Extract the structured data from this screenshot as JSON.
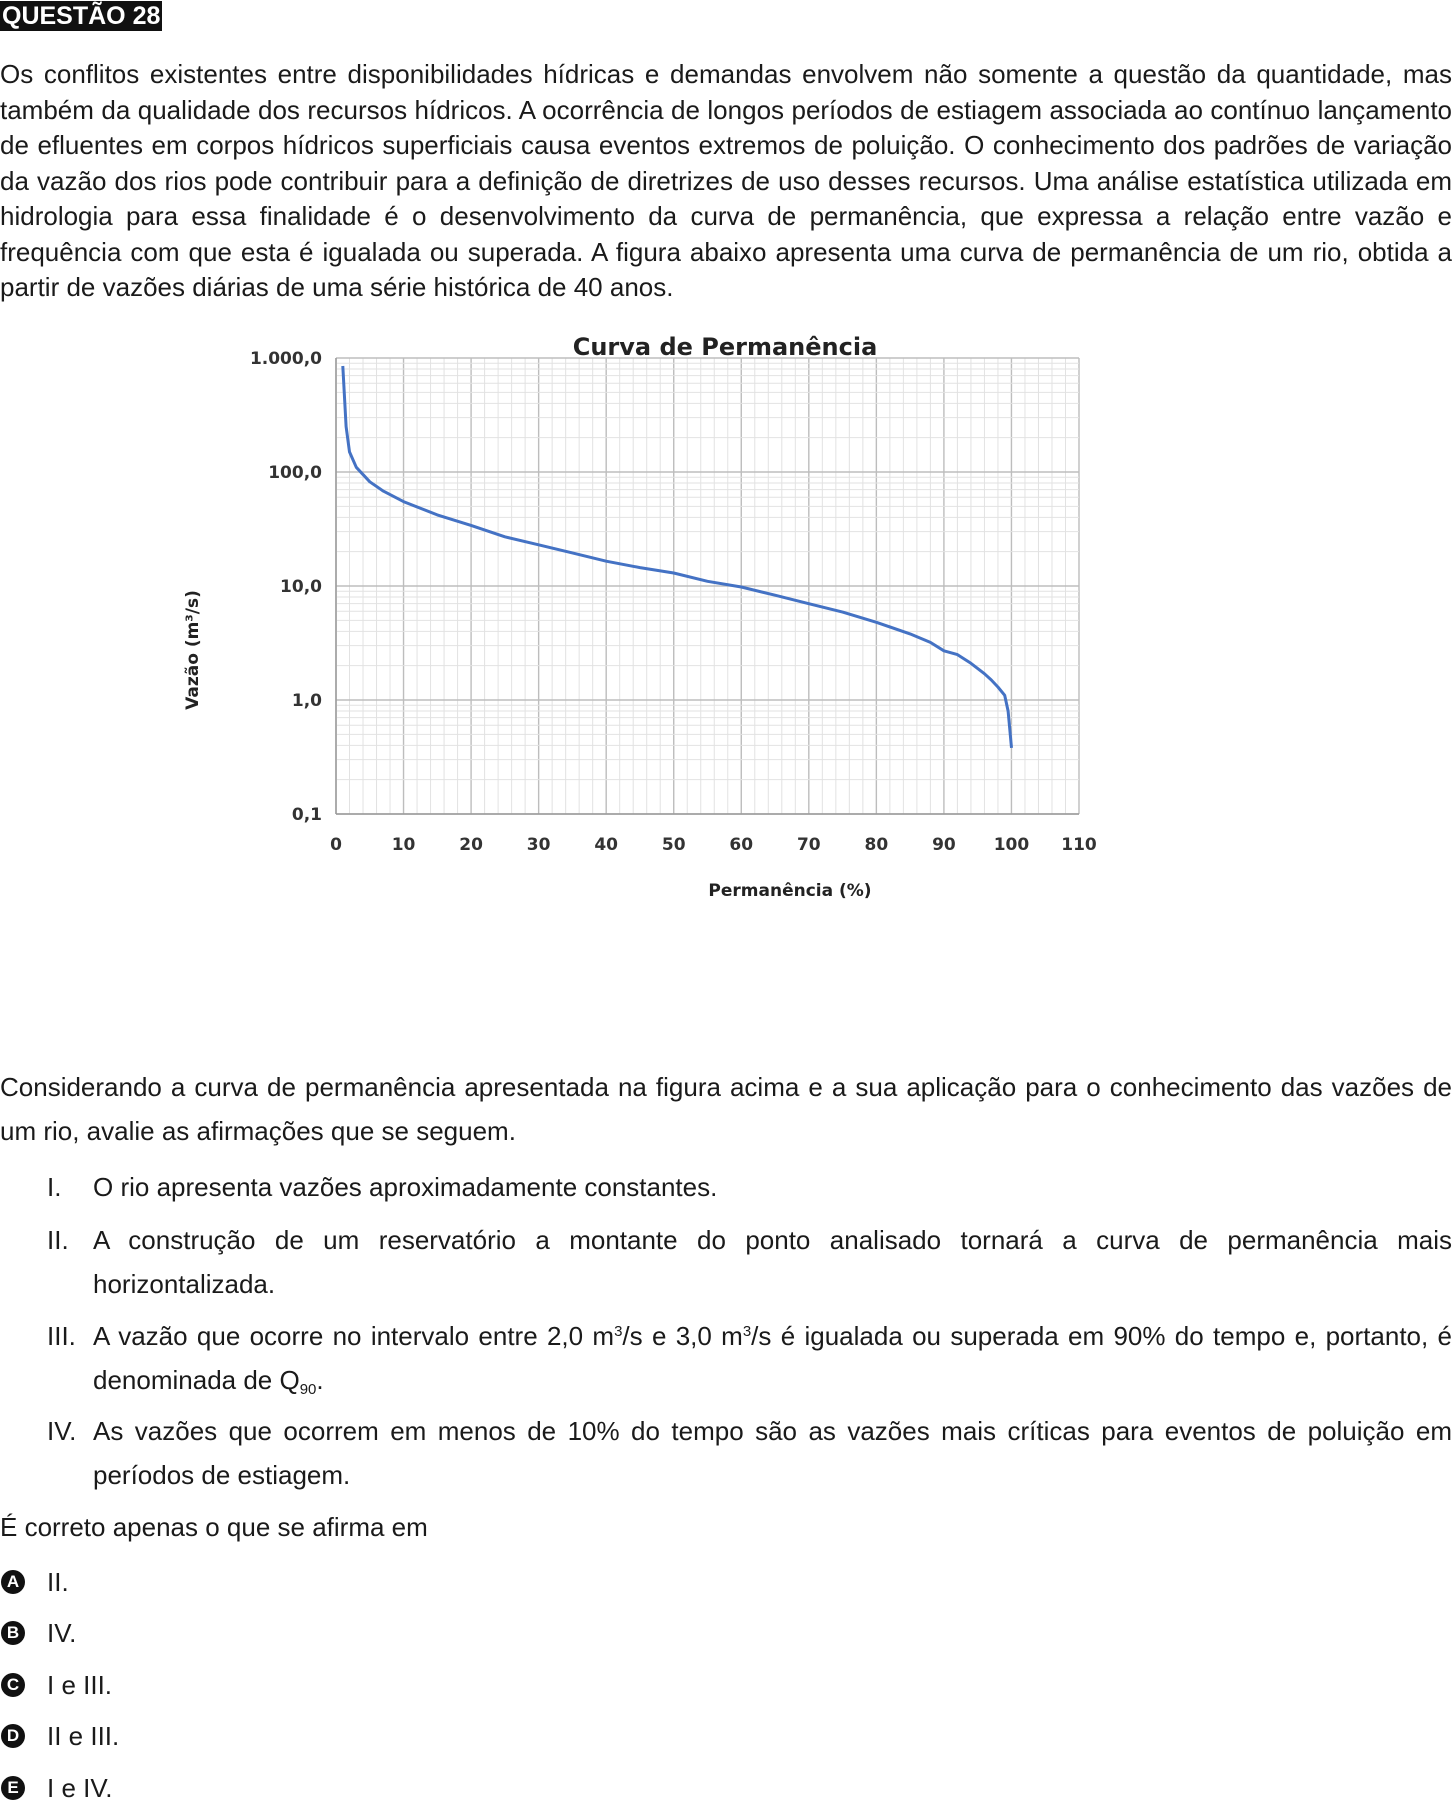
{
  "header": {
    "question_label": "QUESTÃO 28"
  },
  "intro": "Os conflitos existentes entre disponibilidades hídricas e demandas envolvem não somente a questão da quantidade, mas também da qualidade dos recursos hídricos. A ocorrência de longos períodos de estiagem associada ao contínuo lançamento de efluentes em corpos hídricos superficiais causa eventos extremos de poluição. O conhecimento dos padrões de variação da vazão dos rios pode contribuir para a definição de diretrizes de uso desses recursos. Uma análise estatística utilizada em hidrologia para essa finalidade é o desenvolvimento da curva de permanência, que expressa a relação entre vazão e frequência com que esta é igualada ou superada. A figura abaixo apresenta uma curva de permanência de um rio, obtida a partir de vazões diárias de uma série histórica de 40 anos.",
  "chart_data": {
    "type": "line",
    "title": "Curva de Permanência",
    "xlabel": "Permanência (%)",
    "ylabel": "Vazão (m³/s)",
    "xlim": [
      0,
      110
    ],
    "ylim": [
      0.1,
      1000
    ],
    "y_scale": "log",
    "grid": true,
    "color": "#4472c4",
    "x_ticks": [
      0,
      10,
      20,
      30,
      40,
      50,
      60,
      70,
      80,
      90,
      100,
      110
    ],
    "x_tick_labels": [
      "0",
      "10",
      "20",
      "30",
      "40",
      "50",
      "60",
      "70",
      "80",
      "90",
      "100",
      "110"
    ],
    "y_ticks": [
      0.1,
      1,
      10,
      100,
      1000
    ],
    "y_tick_labels": [
      "0,1",
      "1,0",
      "10,0",
      "100,0",
      "1.000,0"
    ],
    "series": [
      {
        "x": [
          1,
          1.5,
          2,
          3,
          5,
          7,
          10,
          15,
          20,
          25,
          30,
          35,
          40,
          45,
          50,
          55,
          60,
          65,
          70,
          75,
          80,
          85,
          88,
          90,
          92,
          94,
          96,
          97,
          98,
          99,
          99.5,
          100
        ],
        "y": [
          850,
          250,
          150,
          110,
          82,
          68,
          55,
          42,
          34,
          27,
          23,
          19.5,
          16.5,
          14.5,
          13,
          11,
          9.8,
          8.3,
          7,
          5.9,
          4.8,
          3.8,
          3.2,
          2.7,
          2.5,
          2.1,
          1.7,
          1.5,
          1.3,
          1.1,
          0.8,
          0.38
        ]
      }
    ]
  },
  "prompt": "Considerando a curva de permanência apresentada na figura acima e a sua aplicação para o conhecimento das vazões de um rio, avalie as afirmações que se seguem.",
  "statements": [
    {
      "num": "I.",
      "text": "O rio apresenta vazões aproximadamente constantes."
    },
    {
      "num": "II.",
      "text": "A construção de um reservatório a montante do ponto analisado tornará a curva de permanência mais horizontalizada."
    },
    {
      "num": "III.",
      "text_a": "A vazão que ocorre no intervalo entre 2,0 m",
      "sup_a": "3",
      "text_b": "/s e 3,0 m",
      "sup_b": "3",
      "text_c": "/s é igualada ou superada em 90% do tempo e, portanto, é denominada de Q",
      "sub": "90",
      "text_d": "."
    },
    {
      "num": "IV.",
      "text": "As vazões que ocorrem em menos de 10% do tempo são as vazões mais críticas para eventos de poluição em períodos de estiagem."
    }
  ],
  "question": "É correto apenas o que se afirma em",
  "options": [
    {
      "letter": "A",
      "text": "II."
    },
    {
      "letter": "B",
      "text": "IV."
    },
    {
      "letter": "C",
      "text": "I e III."
    },
    {
      "letter": "D",
      "text": "II e III."
    },
    {
      "letter": "E",
      "text": "I e IV."
    }
  ]
}
